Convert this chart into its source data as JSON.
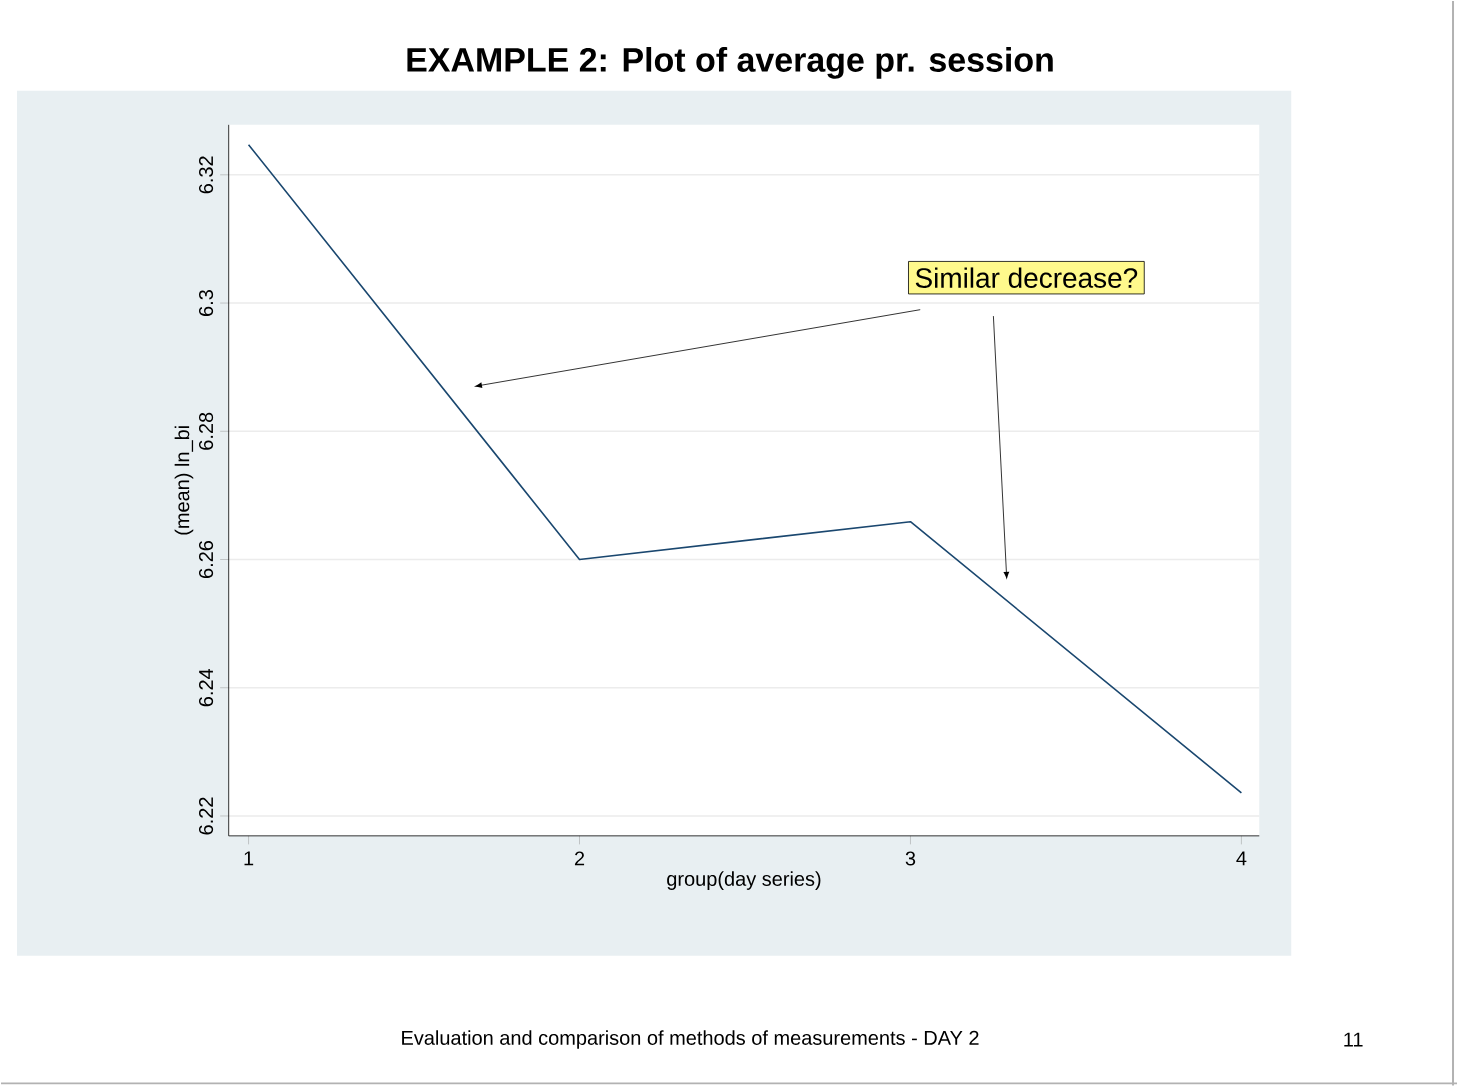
{
  "chart_data": {
    "type": "line",
    "title": "EXAMPLE 2: Plot of average pr. session",
    "xlabel": "group(day series)",
    "ylabel": "(mean) ln_bi",
    "x": [
      1,
      2,
      3,
      4
    ],
    "series": [
      {
        "color": "#1a476f",
        "values": [
          6.3247,
          6.26,
          6.2659,
          6.2236
        ]
      }
    ],
    "xlim": [
      0.94,
      4.054
    ],
    "ylim": [
      6.2169,
      6.3278
    ],
    "xticks": [
      1,
      2,
      3,
      4
    ],
    "yticks": [
      6.22,
      6.24,
      6.26,
      6.28,
      6.3,
      6.32
    ],
    "grid": "y",
    "marker": "none",
    "line_style": "solid",
    "annotations": [
      "Similar decrease?",
      "Evaluation and comparison of methods of measurements   -   DAY 2",
      "11"
    ]
  }
}
